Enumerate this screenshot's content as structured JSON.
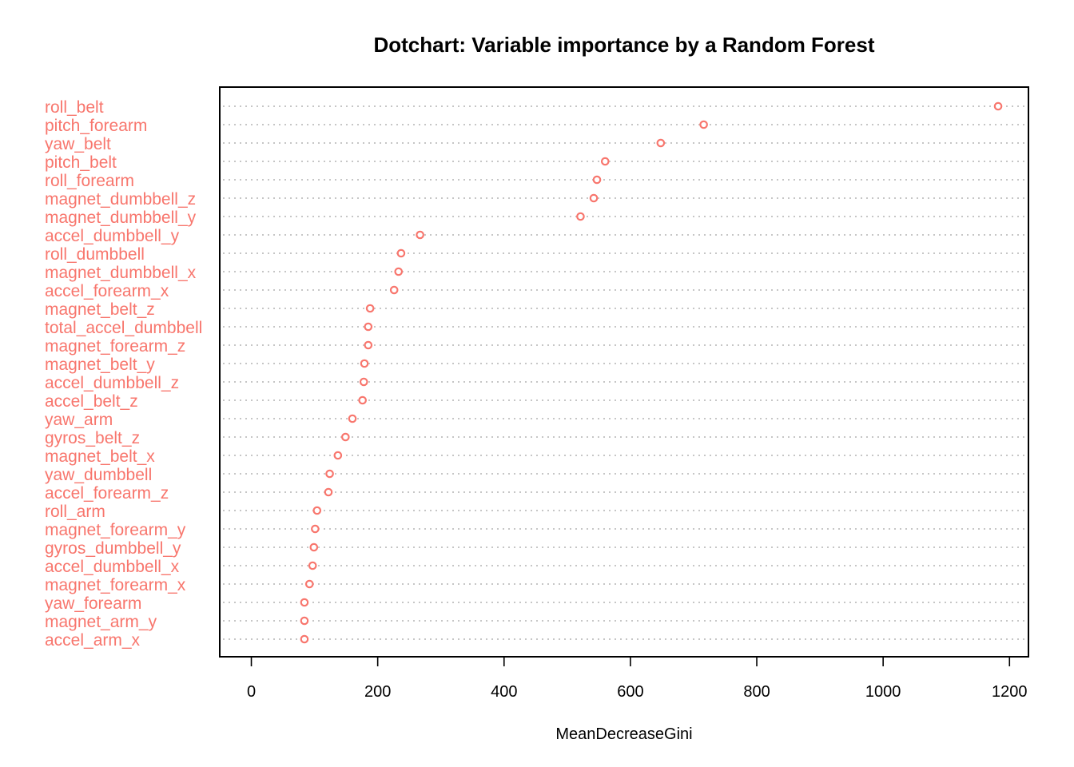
{
  "chart_data": {
    "type": "scatter",
    "title": "Dotchart: Variable importance by a Random Forest",
    "xlabel": "MeanDecreaseGini",
    "ylabel": "",
    "xlim": [
      -50,
      1230
    ],
    "xticks": [
      0,
      200,
      400,
      600,
      800,
      1000,
      1200
    ],
    "grid": true,
    "marker": "open-circle",
    "color": "#F8766D",
    "series": [
      {
        "categories": [
          "roll_belt",
          "pitch_forearm",
          "yaw_belt",
          "pitch_belt",
          "roll_forearm",
          "magnet_dumbbell_z",
          "magnet_dumbbell_y",
          "accel_dumbbell_y",
          "roll_dumbbell",
          "magnet_dumbbell_x",
          "accel_forearm_x",
          "magnet_belt_z",
          "total_accel_dumbbell",
          "magnet_forearm_z",
          "magnet_belt_y",
          "accel_dumbbell_z",
          "accel_belt_z",
          "yaw_arm",
          "gyros_belt_z",
          "magnet_belt_x",
          "yaw_dumbbell",
          "accel_forearm_z",
          "roll_arm",
          "magnet_forearm_y",
          "gyros_dumbbell_y",
          "accel_dumbbell_x",
          "magnet_forearm_x",
          "yaw_forearm",
          "magnet_arm_y",
          "accel_arm_x"
        ],
        "values": [
          1182,
          716,
          648,
          560,
          547,
          542,
          521,
          267,
          237,
          233,
          226,
          188,
          185,
          185,
          179,
          178,
          176,
          160,
          149,
          137,
          124,
          122,
          104,
          101,
          99,
          97,
          92,
          84,
          84,
          84
        ]
      }
    ]
  }
}
